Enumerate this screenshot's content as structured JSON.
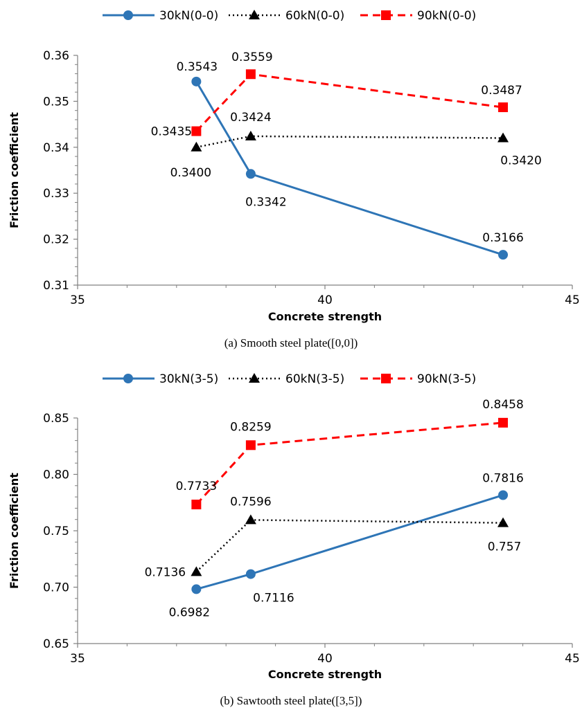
{
  "chart_data": [
    {
      "type": "line",
      "caption": "(a) Smooth steel plate([0,0])",
      "xlabel": "Concrete strength",
      "ylabel": "Friction coefficient",
      "xlim": [
        35,
        45
      ],
      "ylim": [
        0.31,
        0.36
      ],
      "xticks": [
        "35",
        "40",
        "45"
      ],
      "yticks": [
        "0.31",
        "0.32",
        "0.33",
        "0.34",
        "0.35",
        "0.36"
      ],
      "x": [
        37.4,
        38.5,
        43.6
      ],
      "series": [
        {
          "name": "30kN(0-0)",
          "values": [
            0.3543,
            0.3342,
            0.3166
          ],
          "labels": [
            "0.3543",
            "0.3342",
            "0.3166"
          ],
          "color": "#2E75B6",
          "marker": "circle",
          "style": "solid"
        },
        {
          "name": "60kN(0-0)",
          "values": [
            0.34,
            0.3424,
            0.342
          ],
          "labels": [
            "0.3400",
            "0.3424",
            "0.3420"
          ],
          "color": "#000000",
          "marker": "triangle",
          "style": "dotted"
        },
        {
          "name": "90kN(0-0)",
          "values": [
            0.3435,
            0.3559,
            0.3487
          ],
          "labels": [
            "0.3435",
            "0.3559",
            "0.3487"
          ],
          "color": "#FF0000",
          "marker": "square",
          "style": "dashed"
        }
      ],
      "legend": "top",
      "grid": false
    },
    {
      "type": "line",
      "caption": "(b) Sawtooth steel plate([3,5])",
      "xlabel": "Concrete strength",
      "ylabel": "Friction coefficient",
      "xlim": [
        35,
        45
      ],
      "ylim": [
        0.65,
        0.85
      ],
      "xticks": [
        "35",
        "40",
        "45"
      ],
      "yticks": [
        "0.65",
        "0.70",
        "0.75",
        "0.80",
        "0.85"
      ],
      "x": [
        37.4,
        38.5,
        43.6
      ],
      "series": [
        {
          "name": "30kN(3-5)",
          "values": [
            0.6982,
            0.7116,
            0.7816
          ],
          "labels": [
            "0.6982",
            "0.7116",
            "0.7816"
          ],
          "color": "#2E75B6",
          "marker": "circle",
          "style": "solid"
        },
        {
          "name": "60kN(3-5)",
          "values": [
            0.7136,
            0.7596,
            0.757
          ],
          "labels": [
            "0.7136",
            "0.7596",
            "0.757"
          ],
          "color": "#000000",
          "marker": "triangle",
          "style": "dotted"
        },
        {
          "name": "90kN(3-5)",
          "values": [
            0.7733,
            0.8259,
            0.8458
          ],
          "labels": [
            "0.7733",
            "0.8259",
            "0.8458"
          ],
          "color": "#FF0000",
          "marker": "square",
          "style": "dashed"
        }
      ],
      "legend": "top",
      "grid": false
    }
  ]
}
